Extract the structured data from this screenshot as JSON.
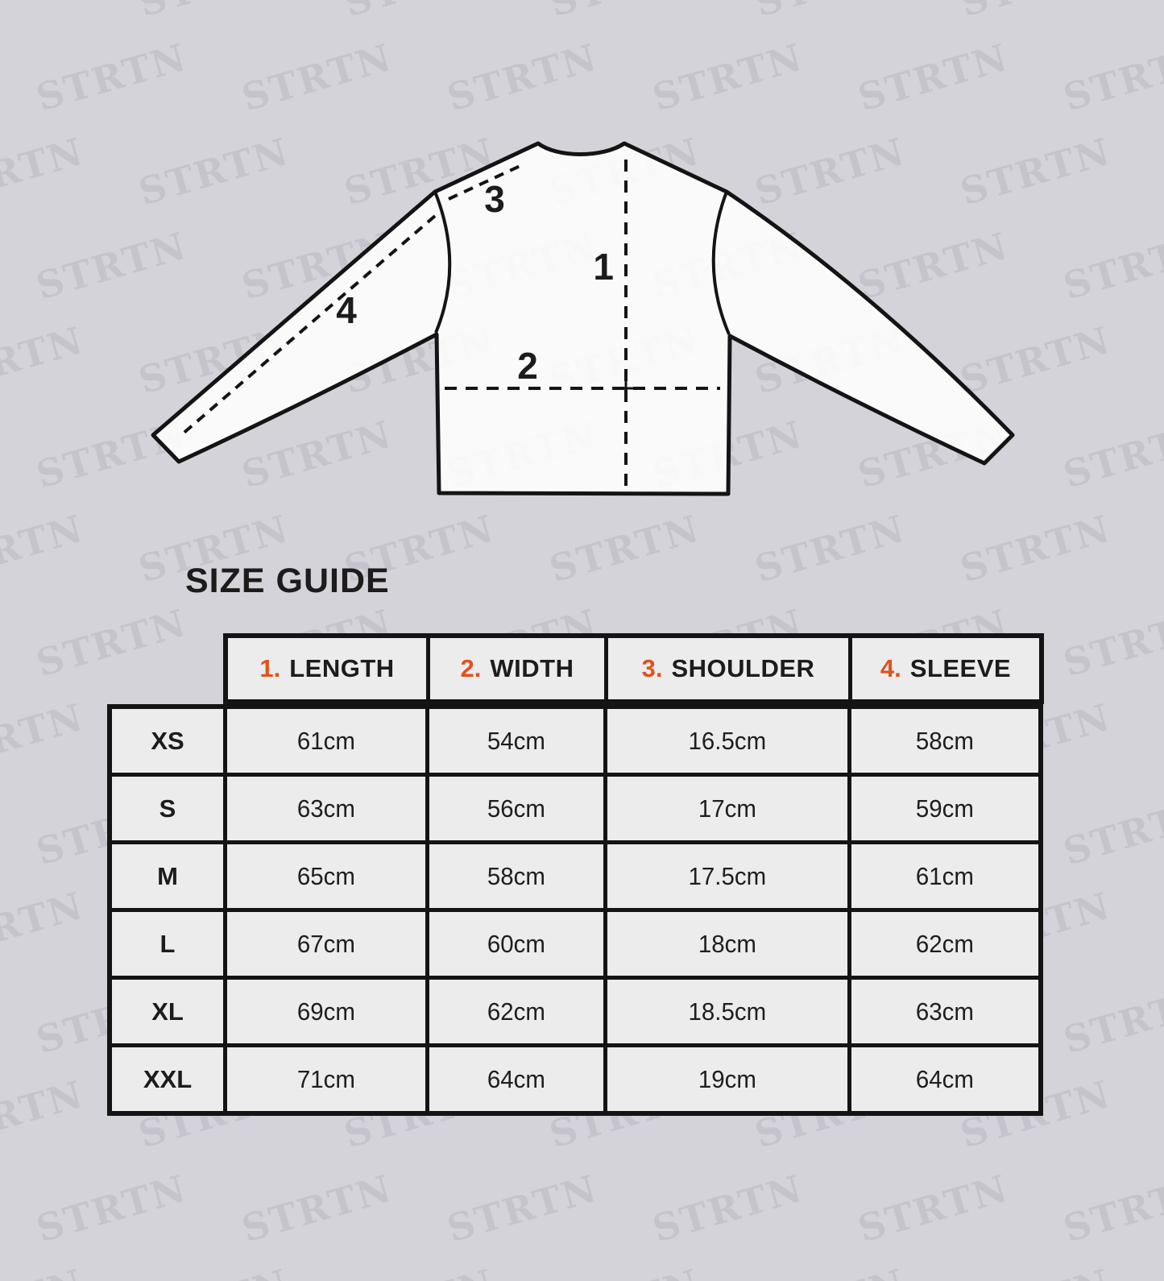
{
  "title": "SIZE GUIDE",
  "watermark": {
    "text": "STRTN"
  },
  "diagram": {
    "labels": {
      "length": "1",
      "width": "2",
      "shoulder": "3",
      "sleeve": "4"
    }
  },
  "table": {
    "columns": [
      {
        "num": "1.",
        "label": "LENGTH"
      },
      {
        "num": "2.",
        "label": "WIDTH"
      },
      {
        "num": "3.",
        "label": "SHOULDER"
      },
      {
        "num": "4.",
        "label": "SLEEVE"
      }
    ],
    "rows": [
      {
        "size": "XS",
        "values": [
          "61cm",
          "54cm",
          "16.5cm",
          "58cm"
        ]
      },
      {
        "size": "S",
        "values": [
          "63cm",
          "56cm",
          "17cm",
          "59cm"
        ]
      },
      {
        "size": "M",
        "values": [
          "65cm",
          "58cm",
          "17.5cm",
          "61cm"
        ]
      },
      {
        "size": "L",
        "values": [
          "67cm",
          "60cm",
          "18cm",
          "62cm"
        ]
      },
      {
        "size": "XL",
        "values": [
          "69cm",
          "62cm",
          "18.5cm",
          "63cm"
        ]
      },
      {
        "size": "XXL",
        "values": [
          "71cm",
          "64cm",
          "19cm",
          "64cm"
        ]
      }
    ]
  },
  "colors": {
    "bg": "#d4d3d9",
    "wm": "#c5c4cc",
    "accent": "#e0521d",
    "ink": "#1d1b1c",
    "line": "#141414"
  }
}
